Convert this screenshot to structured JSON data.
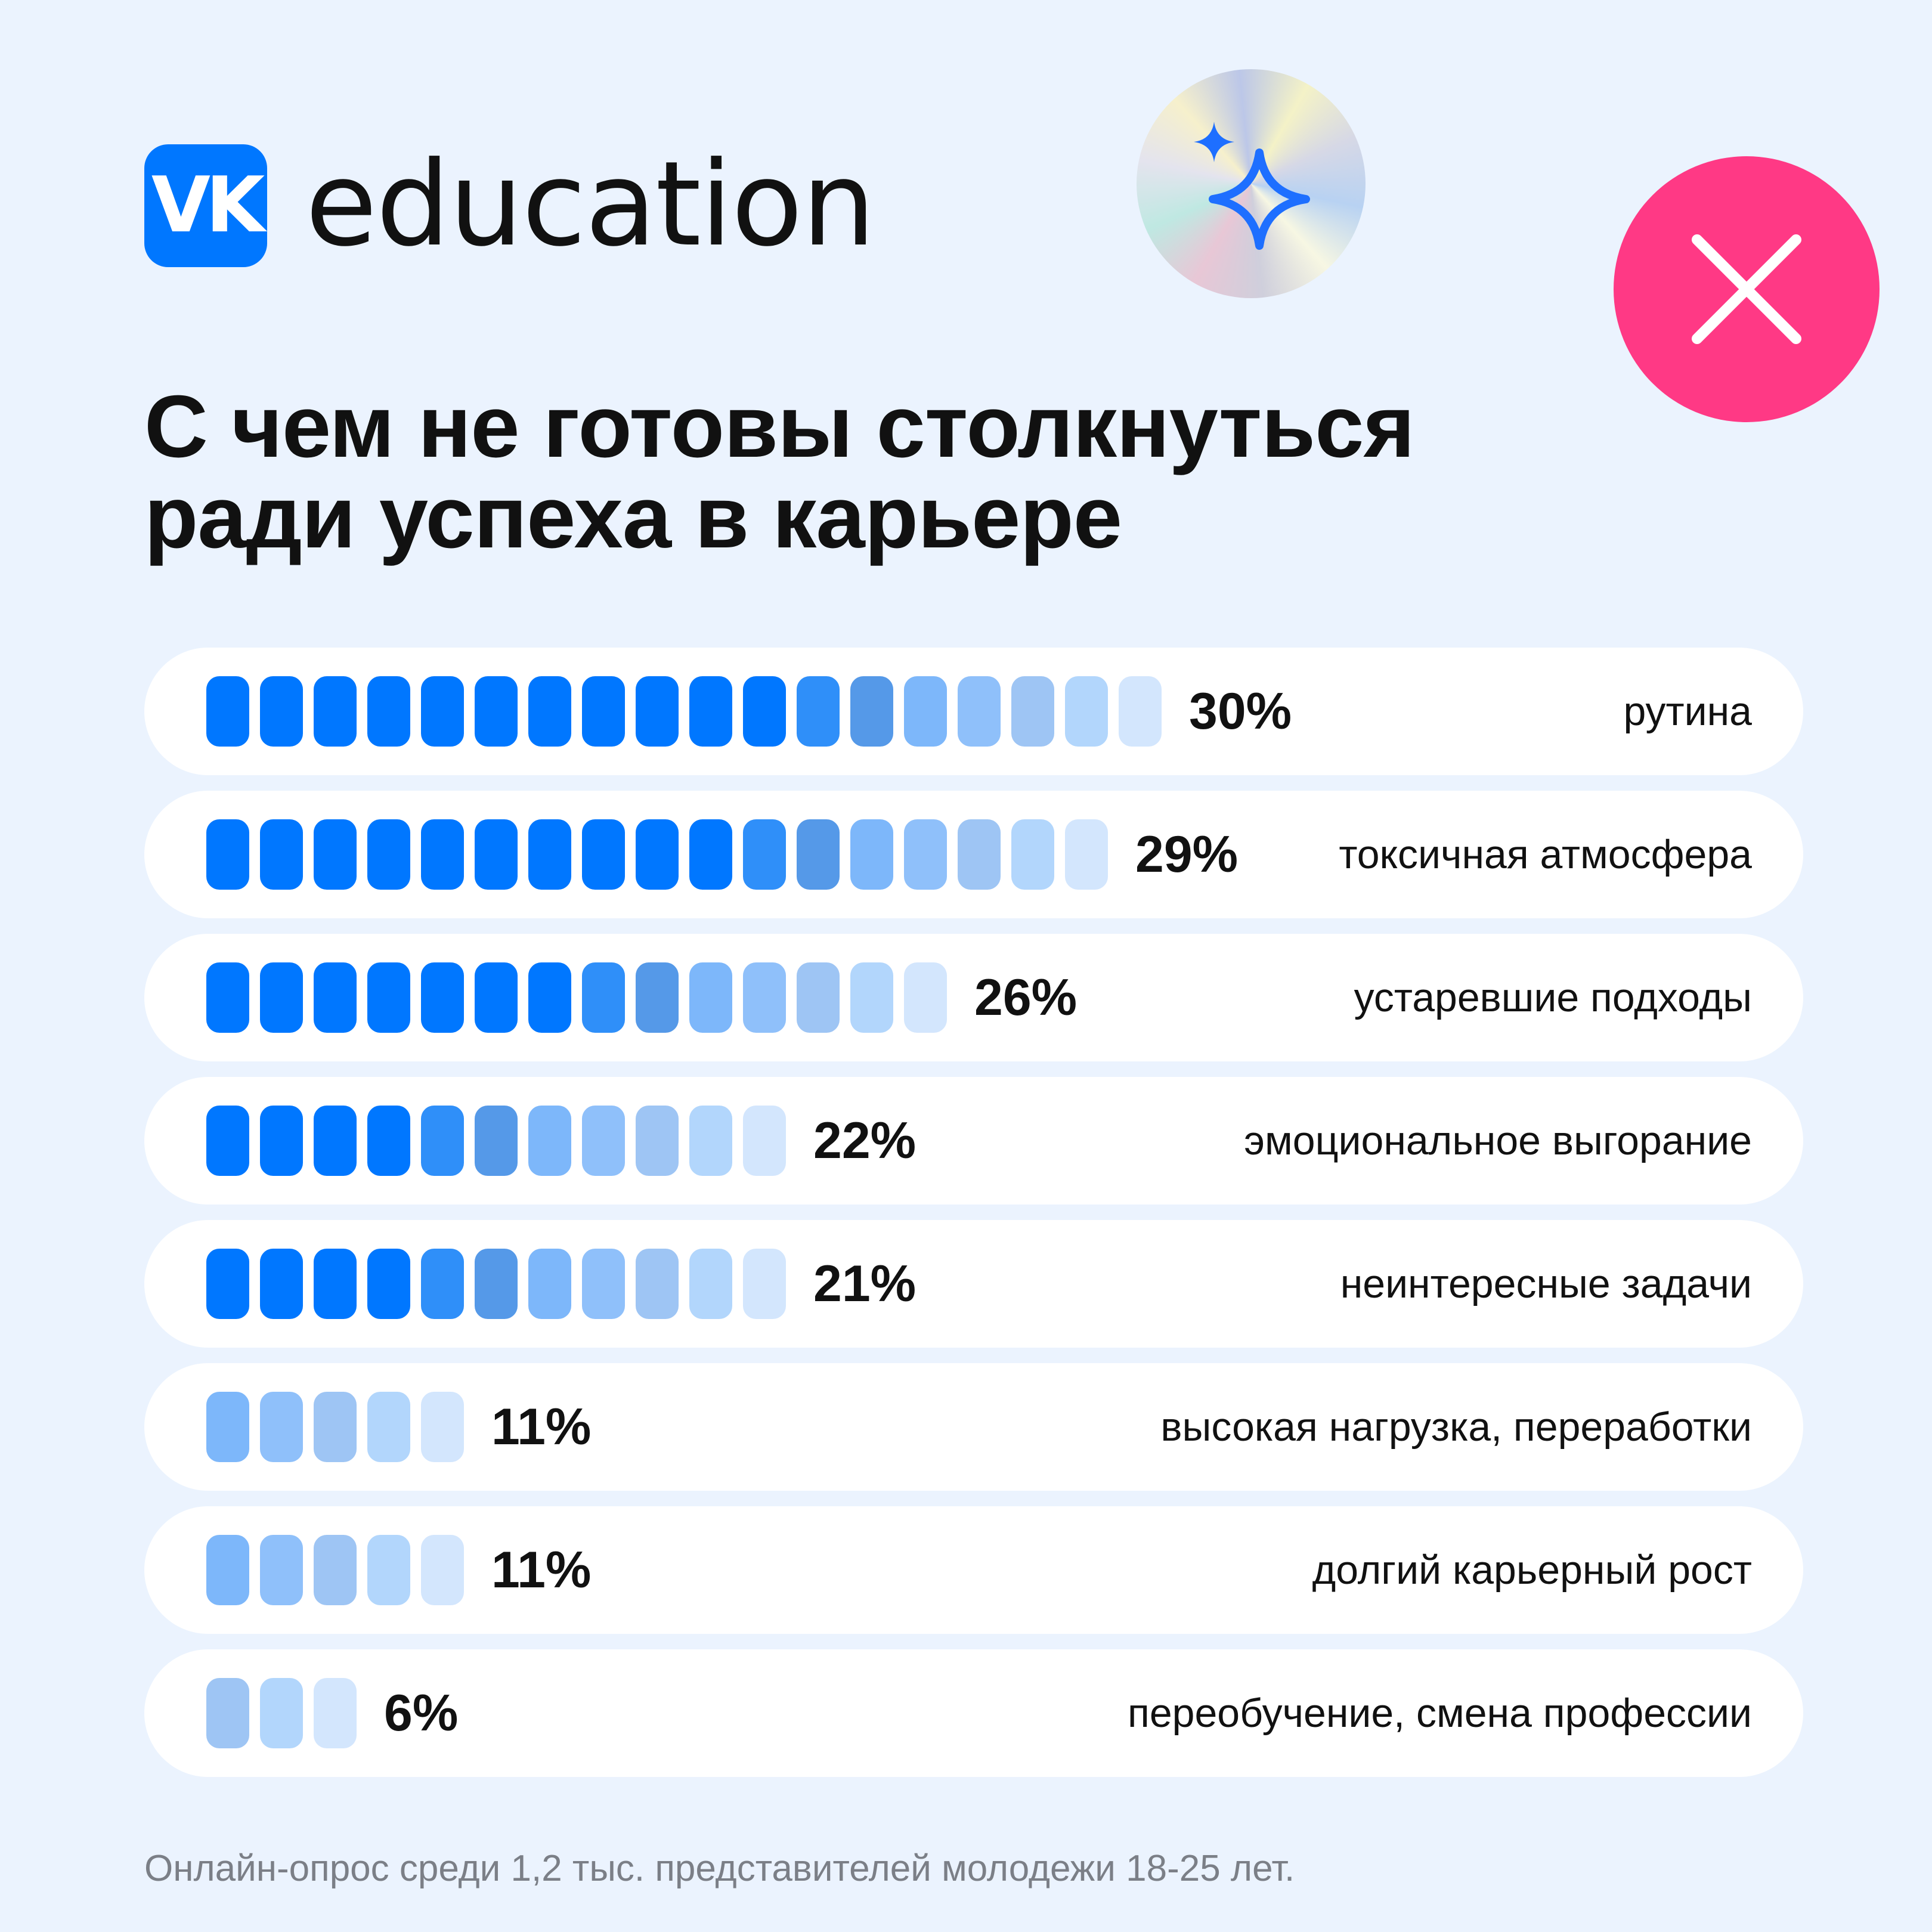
{
  "brand": {
    "logo_text": "VK",
    "name": "education",
    "accent_color": "#0077ff"
  },
  "decor": {
    "sparkle_badge_icon": "sparkles-icon",
    "close_icon": "close-icon",
    "close_color": "#ff3985"
  },
  "title": {
    "line1": "С чем не готовы столкнуться",
    "line2": "ради успеха в карьере"
  },
  "chart_data": {
    "type": "bar",
    "orientation": "horizontal",
    "categories": [
      "рутина",
      "токсичная атмосфера",
      "устаревшие подходы",
      "эмоциональное выгорание",
      "неинтересные задачи",
      "высокая нагрузка, переработки",
      "долгий карьерный рост",
      "переобучение, смена профессии"
    ],
    "values": [
      30,
      29,
      26,
      22,
      21,
      11,
      11,
      6
    ],
    "value_labels": [
      "30%",
      "29%",
      "26%",
      "22%",
      "21%",
      "11%",
      "11%",
      "6%"
    ],
    "segments": [
      18,
      17,
      14,
      11,
      11,
      5,
      5,
      3
    ],
    "unit": "%",
    "palette": [
      "#0077ff",
      "#2f8ff9",
      "#5599e8",
      "#7db7fa",
      "#8fc0fa",
      "#9ec5f4",
      "#b2d6fc",
      "#d3e6fd"
    ]
  },
  "footer": {
    "source": "Онлайн-опрос среди 1,2 тыс. представителей молодежи 18-25 лет."
  }
}
